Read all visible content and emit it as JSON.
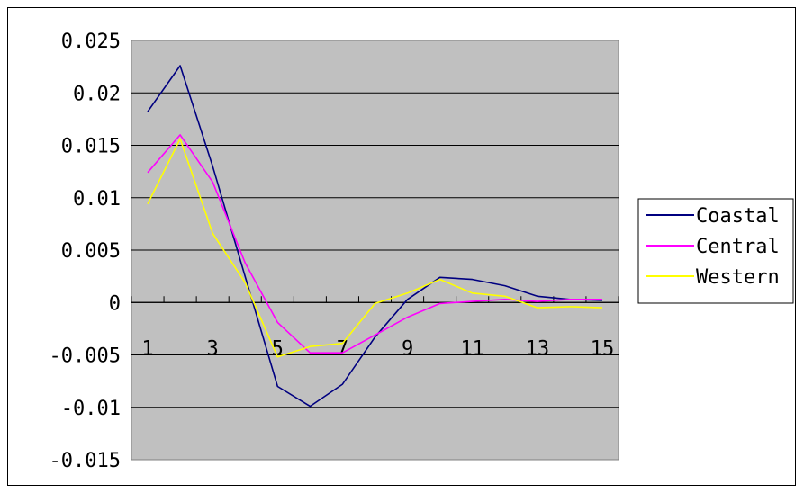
{
  "chart_data": {
    "type": "line",
    "title": "",
    "xlabel": "",
    "ylabel": "",
    "x": [
      1,
      2,
      3,
      4,
      5,
      6,
      7,
      8,
      9,
      10,
      11,
      12,
      13,
      14,
      15
    ],
    "x_tick_labels": [
      "1",
      "3",
      "5",
      "7",
      "9",
      "11",
      "13",
      "15"
    ],
    "y_tick_labels": [
      "0.025",
      "0.02",
      "0.015",
      "0.01",
      "0.005",
      "0",
      "-0.005",
      "-0.01",
      "-0.015"
    ],
    "ylim": [
      -0.015,
      0.025
    ],
    "grid": true,
    "legend_position": "right",
    "plot_background": "#c0c0c0",
    "series": [
      {
        "name": "Coastal",
        "color": "#000080",
        "values": [
          0.0182,
          0.0226,
          0.013,
          0.0025,
          -0.008,
          -0.0099,
          -0.0078,
          -0.0033,
          0.0003,
          0.0024,
          0.0022,
          0.0016,
          0.0006,
          0.0003,
          0.0002
        ]
      },
      {
        "name": "Central",
        "color": "#ff00ff",
        "values": [
          0.0124,
          0.016,
          0.0115,
          0.0038,
          -0.0019,
          -0.0048,
          -0.0048,
          -0.0031,
          -0.0014,
          -0.0001,
          0.0001,
          0.0003,
          0.0001,
          0.0003,
          0.0003
        ]
      },
      {
        "name": "Western",
        "color": "#ffff00",
        "values": [
          0.0094,
          0.0156,
          0.0066,
          0.0019,
          -0.0052,
          -0.0042,
          -0.0039,
          -0.0001,
          0.0009,
          0.0022,
          0.0009,
          0.0006,
          -0.0005,
          -0.0004,
          -0.0005
        ]
      }
    ]
  }
}
